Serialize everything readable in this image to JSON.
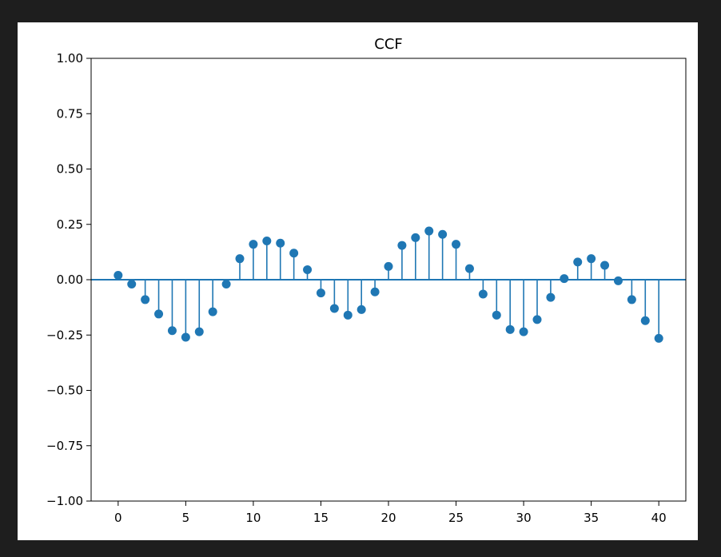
{
  "window": {
    "background": "#1e1e1e"
  },
  "chart_data": {
    "type": "stem",
    "title": "CCF",
    "xlabel": "",
    "ylabel": "",
    "xlim": [
      -2,
      42
    ],
    "ylim": [
      -1.0,
      1.0
    ],
    "xticks": [
      0,
      5,
      10,
      15,
      20,
      25,
      30,
      35,
      40
    ],
    "xtick_labels": [
      "0",
      "5",
      "10",
      "15",
      "20",
      "25",
      "30",
      "35",
      "40"
    ],
    "yticks": [
      1.0,
      0.75,
      0.5,
      0.25,
      0.0,
      -0.25,
      -0.5,
      -0.75,
      -1.0
    ],
    "ytick_labels": [
      "1.00",
      "0.75",
      "0.50",
      "0.25",
      "0.00",
      "−0.25",
      "−0.50",
      "−0.75",
      "−1.00"
    ],
    "grid": false,
    "legend": "none",
    "baseline": 0,
    "color": "#1f77b4",
    "x": [
      0,
      1,
      2,
      3,
      4,
      5,
      6,
      7,
      8,
      9,
      10,
      11,
      12,
      13,
      14,
      15,
      16,
      17,
      18,
      19,
      20,
      21,
      22,
      23,
      24,
      25,
      26,
      27,
      28,
      29,
      30,
      31,
      32,
      33,
      34,
      35,
      36,
      37,
      38,
      39,
      40
    ],
    "values": [
      0.02,
      -0.02,
      -0.09,
      -0.155,
      -0.23,
      -0.26,
      -0.235,
      -0.145,
      -0.02,
      0.095,
      0.16,
      0.175,
      0.165,
      0.12,
      0.045,
      -0.06,
      -0.13,
      -0.16,
      -0.135,
      -0.055,
      0.06,
      0.155,
      0.19,
      0.22,
      0.205,
      0.16,
      0.05,
      -0.065,
      -0.16,
      -0.225,
      -0.235,
      -0.18,
      -0.08,
      0.005,
      0.08,
      0.095,
      0.065,
      -0.005,
      -0.09,
      -0.185,
      -0.265
    ]
  }
}
